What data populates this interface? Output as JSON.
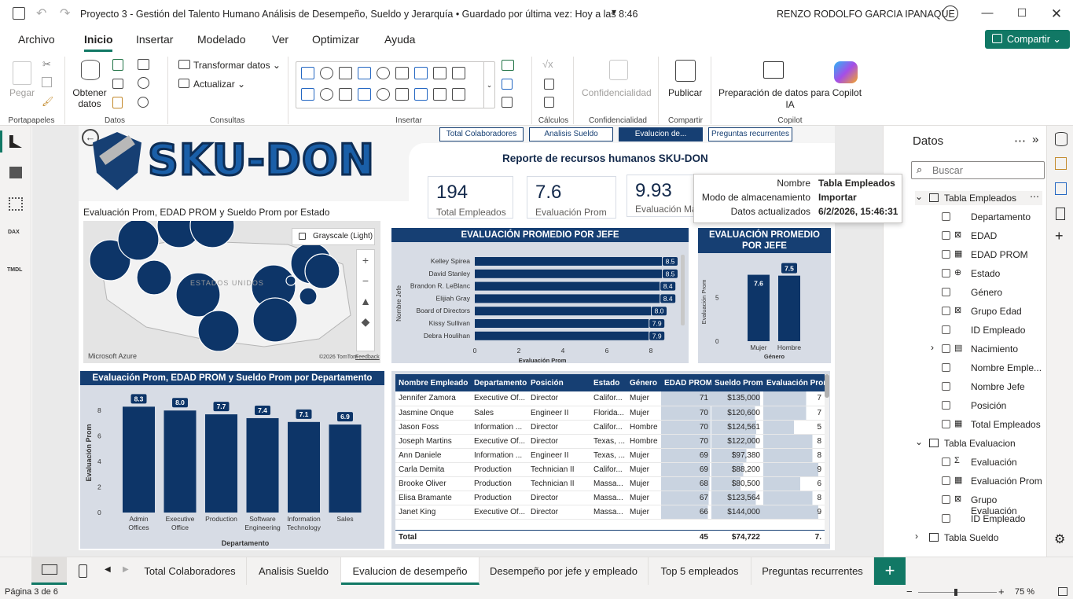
{
  "titlebar": {
    "title": "Proyecto 3 - Gestión del Talento Humano Análisis de Desempeño, Sueldo y Jerarquía • Guardado por última vez: Hoy a las 8:46",
    "user": "RENZO RODOLFO GARCIA IPANAQUE"
  },
  "menu": [
    "Archivo",
    "Inicio",
    "Insertar",
    "Modelado",
    "Ver",
    "Optimizar",
    "Ayuda"
  ],
  "share_label": "Compartir",
  "ribbon": {
    "pegar": "Pegar",
    "obtener_datos": "Obtener datos",
    "transformar": "Transformar datos",
    "actualizar": "Actualizar",
    "confidencialidad": "Confidencialidad",
    "publicar": "Publicar",
    "copilot_prep": "Preparación de datos para Copilot IA",
    "groups": [
      "Portapapeles",
      "Datos",
      "Consultas",
      "Insertar",
      "Cálculos",
      "Confidencialidad",
      "Compartir",
      "Copilot"
    ]
  },
  "leftbar": [
    "DAX",
    "TMDL"
  ],
  "report": {
    "logo_text": "SKU-DON",
    "report_title": "Reporte de recursos humanos  SKU-DON",
    "page_buttons": [
      "Total Colaboradores",
      "Analisis Sueldo",
      "Evalucion de...",
      "Preguntas recurrentes"
    ],
    "kpis": [
      {
        "value": "194",
        "label": "Total Empleados"
      },
      {
        "value": "7.6",
        "label": "Evaluación Prom"
      },
      {
        "value": "9.93",
        "label": "Evaluación Má"
      }
    ],
    "map": {
      "title": "Evaluación Prom, EDAD PROM y Sueldo Prom por Estado",
      "style": "Grayscale (Light)",
      "country": "ESTADOS UNIDOS",
      "brand": "Microsoft Azure",
      "credit": "©2026 TomTom",
      "feedback": "Feedback"
    },
    "jefe_chart": {
      "title": "EVALUACIÓN PROMEDIO POR JEFE",
      "ylabel": "Nombre Jefe",
      "xlabel": "Evaluación Prom",
      "ticks": [
        "0",
        "2",
        "4",
        "6",
        "8"
      ]
    },
    "genero_chart": {
      "title": "EVALUACIÓN PROMEDIO POR JEFE",
      "ylabel": "Evaluación Prom",
      "xlabel": "Género",
      "ticks": [
        "0",
        "5"
      ]
    },
    "dept_chart": {
      "title": "Evaluación Prom, EDAD PROM y Sueldo Prom por Departamento",
      "ylabel": "Evaluación Prom",
      "xlabel": "Departamento",
      "ticks": [
        "0",
        "2",
        "4",
        "6",
        "8"
      ]
    },
    "table": {
      "headers": [
        "Nombre Empleado",
        "Departamento",
        "Posición",
        "Estado",
        "Género",
        "EDAD PROM",
        "Sueldo Prom",
        "Evaluación Prom"
      ],
      "rows": [
        [
          "Jennifer Zamora",
          "Executive Of...",
          "Director",
          "Califor...",
          "Mujer",
          "71",
          "$135,000",
          "7"
        ],
        [
          "Jasmine Onque",
          "Sales",
          "Engineer II",
          "Florida...",
          "Mujer",
          "70",
          "$120,600",
          "7"
        ],
        [
          "Jason Foss",
          "Information ...",
          "Director",
          "Califor...",
          "Hombre",
          "70",
          "$124,561",
          "5"
        ],
        [
          "Joseph Martins",
          "Executive Of...",
          "Director",
          "Texas, ...",
          "Hombre",
          "70",
          "$122,000",
          "8"
        ],
        [
          "Ann Daniele",
          "Information ...",
          "Engineer II",
          "Texas, ...",
          "Mujer",
          "69",
          "$97,380",
          "8"
        ],
        [
          "Carla Demita",
          "Production",
          "Technician II",
          "Califor...",
          "Mujer",
          "69",
          "$88,200",
          "9"
        ],
        [
          "Brooke Oliver",
          "Production",
          "Technician II",
          "Massa...",
          "Mujer",
          "68",
          "$80,500",
          "6"
        ],
        [
          "Elisa Bramante",
          "Production",
          "Director",
          "Massa...",
          "Mujer",
          "67",
          "$123,564",
          "8"
        ],
        [
          "Janet King",
          "Executive Of...",
          "Director",
          "Massa...",
          "Mujer",
          "66",
          "$144,000",
          "9"
        ]
      ],
      "total": [
        "Total",
        "",
        "",
        "",
        "",
        "45",
        "$74,722",
        "7."
      ]
    }
  },
  "chart_data": [
    {
      "type": "bar",
      "orientation": "horizontal",
      "title": "EVALUACIÓN PROMEDIO POR JEFE",
      "categories": [
        "Kelley Spirea",
        "David Stanley",
        "Brandon R. LeBlanc",
        "Elijiah Gray",
        "Board of Directors",
        "Kissy Sullivan",
        "Debra Houlihan"
      ],
      "values": [
        8.5,
        8.5,
        8.4,
        8.4,
        8.0,
        7.9,
        7.9
      ],
      "xlabel": "Evaluación Prom",
      "ylabel": "Nombre Jefe",
      "xlim": [
        0,
        9
      ]
    },
    {
      "type": "bar",
      "title": "EVALUACIÓN PROMEDIO POR JEFE",
      "categories": [
        "Mujer",
        "Hombre"
      ],
      "values": [
        7.6,
        7.5
      ],
      "xlabel": "Género",
      "ylabel": "Evaluación Prom",
      "ylim": [
        0,
        9
      ]
    },
    {
      "type": "bar",
      "title": "Evaluación Prom, EDAD PROM y Sueldo Prom por Departamento",
      "categories": [
        "Admin Offices",
        "Executive Office",
        "Production",
        "Software Engineering",
        "Information Technology",
        "Sales"
      ],
      "values": [
        8.3,
        8.0,
        7.7,
        7.4,
        7.1,
        6.9
      ],
      "xlabel": "Departamento",
      "ylabel": "Evaluación Prom",
      "ylim": [
        0,
        9
      ]
    }
  ],
  "datos": {
    "title": "Datos",
    "search_placeholder": "Buscar",
    "tooltip": {
      "k1": "Nombre",
      "v1": "Tabla Empleados",
      "k2": "Modo de almacenamiento",
      "v2": "Importar",
      "k3": "Datos actualizados",
      "v3": "6/2/2026, 15:46:31"
    },
    "items": [
      {
        "label": "Tabla Empleados",
        "type": "table"
      },
      {
        "label": "Departamento",
        "type": "field"
      },
      {
        "label": "EDAD",
        "type": "calc"
      },
      {
        "label": "EDAD PROM",
        "type": "measure"
      },
      {
        "label": "Estado",
        "type": "geo"
      },
      {
        "label": "Género",
        "type": "field"
      },
      {
        "label": "Grupo Edad",
        "type": "calc"
      },
      {
        "label": "ID Empleado",
        "type": "field"
      },
      {
        "label": "Nacimiento",
        "type": "date"
      },
      {
        "label": "Nombre Emple...",
        "type": "field"
      },
      {
        "label": "Nombre Jefe",
        "type": "field"
      },
      {
        "label": "Posición",
        "type": "field"
      },
      {
        "label": "Total Empleados",
        "type": "measure"
      },
      {
        "label": "Tabla Evaluacion",
        "type": "table"
      },
      {
        "label": "Evaluación",
        "type": "sum"
      },
      {
        "label": "Evaluación Prom",
        "type": "measure"
      },
      {
        "label": "Grupo Evaluación",
        "type": "calc"
      },
      {
        "label": "ID Empleado",
        "type": "field"
      },
      {
        "label": "Tabla Sueldo",
        "type": "table"
      }
    ]
  },
  "tabs": [
    "Total Colaboradores",
    "Analisis Sueldo",
    "Evalucion de desempeño",
    "Desempeño por jefe y empleado",
    "Top 5 empleados",
    "Preguntas recurrentes"
  ],
  "status": {
    "page": "Página 3 de 6",
    "zoom": "75 %"
  }
}
